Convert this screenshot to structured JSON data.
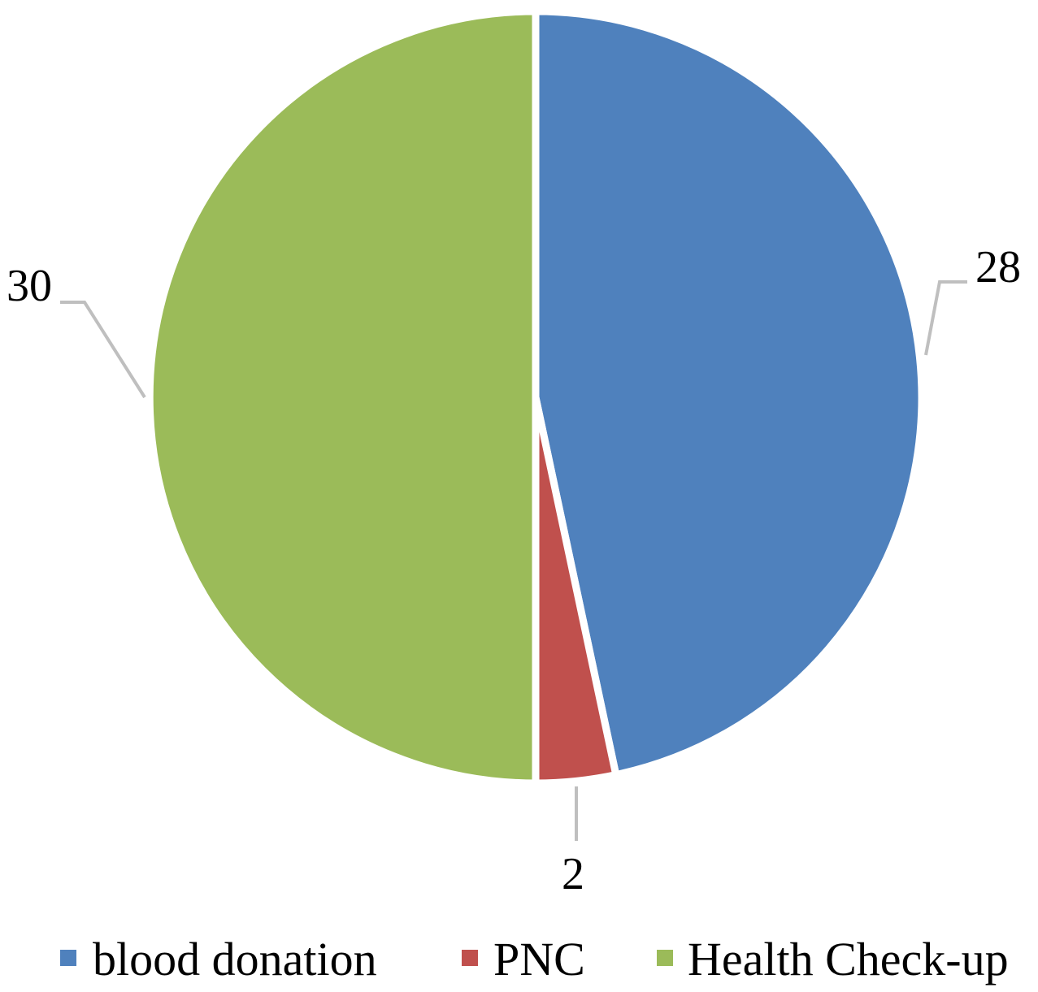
{
  "chart_data": {
    "type": "pie",
    "categories": [
      "blood donation",
      "PNC",
      "Health Check-up"
    ],
    "values": [
      28,
      2,
      30
    ],
    "data_labels": [
      "28",
      "2",
      "30"
    ],
    "colors": [
      "#4f81bd",
      "#c0504d",
      "#9bbb59"
    ],
    "start_angle": "12 o'clock",
    "direction": "clockwise",
    "legend": {
      "placement": "bottom",
      "entries": [
        "blood donation",
        "PNC",
        "Health Check-up"
      ]
    },
    "title": ""
  }
}
